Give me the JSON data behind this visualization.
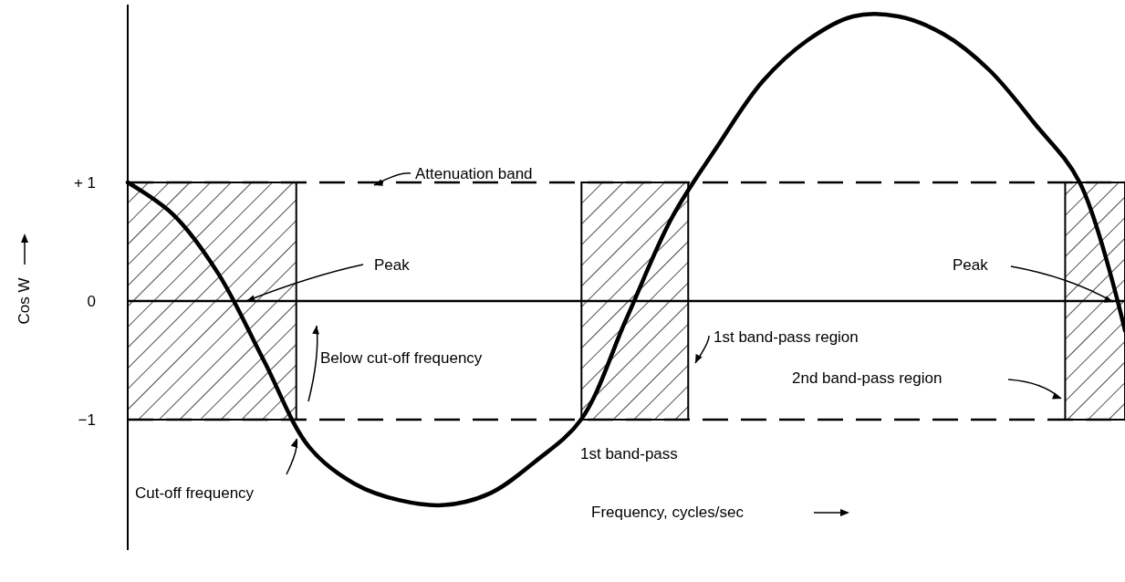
{
  "chart_data": {
    "type": "line",
    "xlabel": "Frequency, cycles/sec",
    "ylabel": "Cos W",
    "categories": [
      null,
      null,
      null,
      null,
      null,
      null,
      null,
      null,
      null,
      null,
      null,
      null,
      null,
      null,
      null,
      null,
      null,
      null,
      null,
      null,
      null,
      null,
      null
    ],
    "series": [
      {
        "color": "#000000",
        "values": [
          1.0,
          0.73,
          0.23,
          -0.5,
          -1.23,
          -1.54,
          -1.68,
          -1.72,
          -1.62,
          -1.35,
          -1.0,
          -0.15,
          0.7,
          1.3,
          1.85,
          2.2,
          2.4,
          2.4,
          2.25,
          1.95,
          1.5,
          1.0,
          -0.25
        ]
      }
    ],
    "ylim": [
      -2.1,
      2.5
    ],
    "yticks": [
      {
        "value": 1,
        "label": "+ 1"
      },
      0,
      {
        "value": -1,
        "label": "−1"
      }
    ],
    "tick_labels": "y",
    "marker": "none",
    "line_style": "solid",
    "ref_lines": [
      {
        "axis": "y",
        "value": 1,
        "line_style": "dashed",
        "color": "#000000"
      },
      {
        "axis": "y",
        "value": 0,
        "line_style": "solid",
        "color": "#000000"
      },
      {
        "axis": "y",
        "value": -1,
        "line_style": "dashed",
        "color": "#000000"
      }
    ],
    "annotations": [
      "Attenuation band",
      "Peak",
      "Peak",
      "1st band-pass region",
      "Below cut-off frequency",
      "2nd band-pass region",
      "1st band-pass",
      "Cut-off frequency"
    ]
  }
}
